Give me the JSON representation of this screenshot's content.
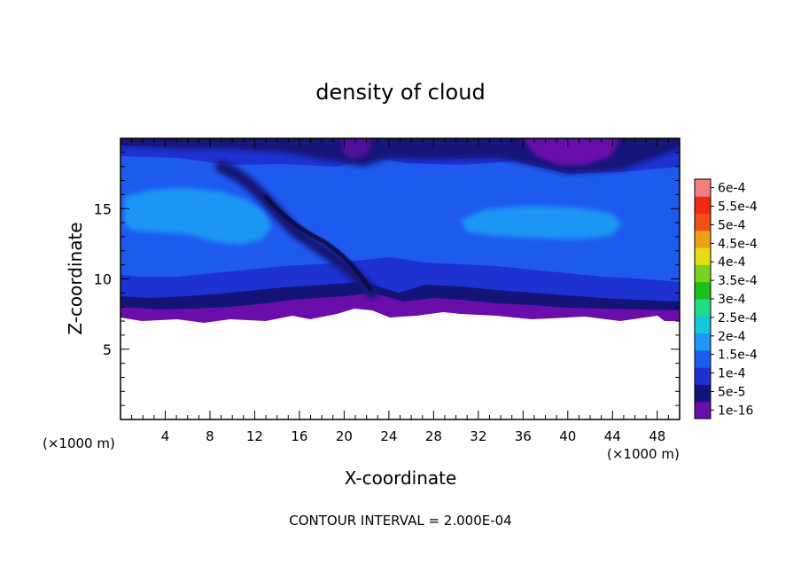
{
  "chart_data": {
    "type": "heatmap",
    "title": "density of cloud",
    "xlabel": "X-coordinate",
    "ylabel": "Z-coordinate",
    "x_unit": "(×1000 m)",
    "z_unit": "(×1000 m)",
    "xlim": [
      0,
      50
    ],
    "ylim": [
      0,
      20
    ],
    "x_ticks": [
      4,
      8,
      12,
      16,
      20,
      24,
      28,
      32,
      36,
      40,
      44,
      48
    ],
    "y_ticks": [
      5,
      10,
      15
    ],
    "footer": "CONTOUR INTERVAL = 2.000E-04",
    "colorbar": {
      "labels": [
        "1e-16",
        "5e-5",
        "1e-4",
        "1.5e-4",
        "2e-4",
        "2.5e-4",
        "3e-4",
        "3.5e-4",
        "4e-4",
        "4.5e-4",
        "5e-4",
        "5.5e-4",
        "6e-4"
      ],
      "colors": [
        "#6a0dab",
        "#141478",
        "#1e32d2",
        "#1e5aee",
        "#1e96f5",
        "#14c8dc",
        "#1edc8c",
        "#1ebe1e",
        "#78d21e",
        "#e6dc14",
        "#f0a014",
        "#f05014",
        "#f02814",
        "#f08080"
      ]
    },
    "fields": {
      "cloud_base_z": 7.5,
      "cloud_top_z": 19.7,
      "max_core_level": "1.5e-4",
      "core_regions": [
        {
          "x_center": 7.5,
          "z_center": 14.5,
          "level": "1.5e-4"
        },
        {
          "x_center": 38.5,
          "z_center": 14.2,
          "level": "1.5e-4"
        }
      ],
      "dark_band": {
        "from": [
          12,
          17.5
        ],
        "to": [
          23,
          9.5
        ],
        "level": "5e-5"
      },
      "top_minimum": {
        "x_center": 40,
        "z_center": 19.2,
        "level": "1e-16"
      }
    }
  }
}
